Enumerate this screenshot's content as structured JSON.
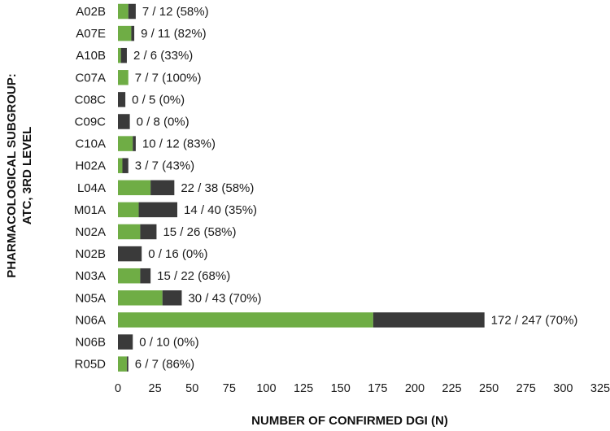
{
  "chart_data": {
    "type": "bar",
    "orientation": "horizontal",
    "stacked": true,
    "categories": [
      "A02B",
      "A07E",
      "A10B",
      "C07A",
      "C08C",
      "C09C",
      "C10A",
      "H02A",
      "L04A",
      "M01A",
      "N02A",
      "N02B",
      "N03A",
      "N05A",
      "N06A",
      "N06B",
      "R05D"
    ],
    "series": [
      {
        "values": [
          7,
          9,
          2,
          7,
          0,
          0,
          10,
          3,
          22,
          14,
          15,
          0,
          15,
          30,
          172,
          0,
          6
        ],
        "color": "#6fad45"
      },
      {
        "values": [
          5,
          2,
          4,
          0,
          5,
          8,
          2,
          4,
          16,
          26,
          11,
          16,
          7,
          13,
          75,
          10,
          1
        ],
        "color": "#3a3a3a"
      }
    ],
    "data_labels": [
      "7 / 12 (58%)",
      "9 / 11 (82%)",
      "2 / 6 (33%)",
      "7 / 7 (100%)",
      "0 / 5 (0%)",
      "0 / 8 (0%)",
      "10 / 12 (83%)",
      "3 / 7 (43%)",
      "22 / 38 (58%)",
      "14 / 40 (35%)",
      "15 / 26 (58%)",
      "0 / 16 (0%)",
      "15 / 22 (68%)",
      "30 / 43 (70%)",
      "172 / 247 (70%)",
      "0 / 10 (0%)",
      "6 / 7 (86%)"
    ],
    "xlabel": "NUMBER OF CONFIRMED DGI (N)",
    "ylabel_lines": [
      "PHARMACOLOGICAL SUBGROUP:",
      "ATC, 3RD LEVEL"
    ],
    "xlim": [
      0,
      325
    ],
    "xticks": [
      0,
      25,
      50,
      75,
      100,
      125,
      150,
      175,
      200,
      225,
      250,
      275,
      300,
      325
    ],
    "grid": false,
    "legend": "none"
  }
}
